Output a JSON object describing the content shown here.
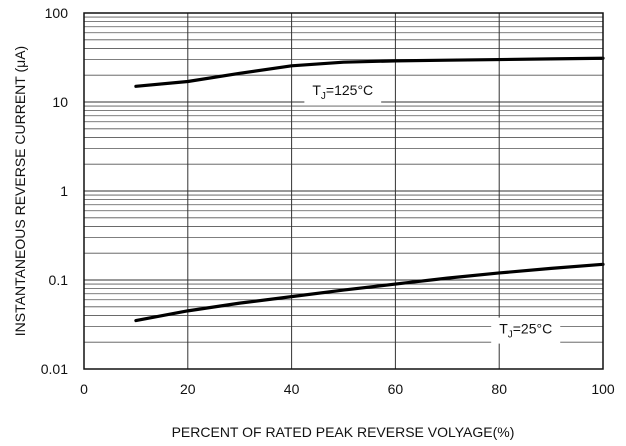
{
  "chart_data": {
    "type": "line",
    "xlabel": "PERCENT OF RATED PEAK REVERSE VOLYAGE(%)",
    "ylabel": "INSTANTANEOUS REVERSE CURRENT (μA)",
    "xlim": [
      0,
      100
    ],
    "ylim": [
      0.01,
      100
    ],
    "yscale": "log",
    "grid": true,
    "x_ticks": [
      "0",
      "20",
      "40",
      "60",
      "80",
      "100"
    ],
    "y_ticks": [
      "100",
      "10",
      "1",
      "0.1",
      "0.01"
    ],
    "series": [
      {
        "x": [
          10,
          20,
          30,
          40,
          50,
          60,
          70,
          80,
          90,
          100
        ],
        "y": [
          15,
          17,
          21,
          25.5,
          28,
          29,
          29.5,
          30,
          30.5,
          31
        ]
      },
      {
        "x": [
          10,
          20,
          30,
          40,
          50,
          60,
          70,
          80,
          90,
          100
        ],
        "y": [
          0.035,
          0.045,
          0.055,
          0.065,
          0.077,
          0.09,
          0.105,
          0.12,
          0.135,
          0.15
        ]
      }
    ],
    "annotations": [
      {
        "prefix": "T",
        "sub": "J",
        "suffix": "=125°C",
        "x": 44,
        "y": 13
      },
      {
        "prefix": "T",
        "sub": "J",
        "suffix": "=25°C",
        "x": 80,
        "y": 0.027
      }
    ]
  }
}
